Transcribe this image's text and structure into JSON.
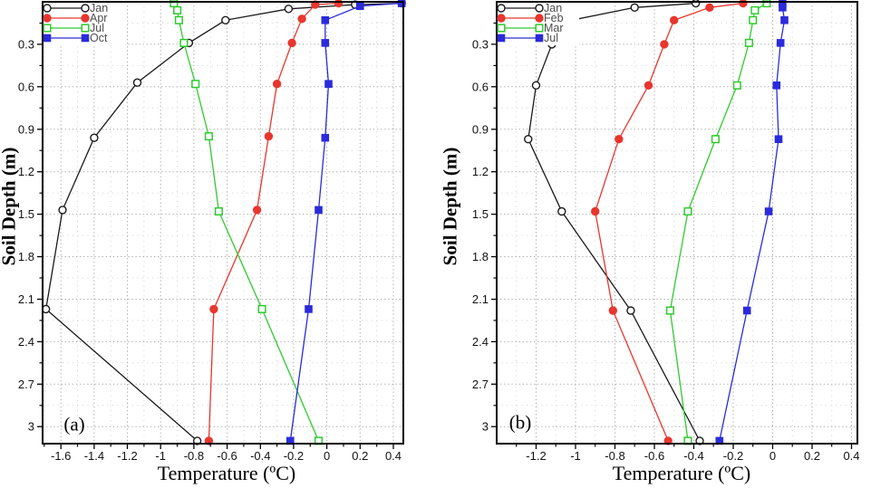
{
  "figure": {
    "background": "#ffffff",
    "description": "Two-panel soil temperature profile chart"
  },
  "styles": {
    "axis_color": "#000000",
    "grid_major_color": "#a8a8a8",
    "grid_minor_color": "#d2d2d2",
    "tick_label_color": "#111111",
    "legend_text_color": "#4d4d4d",
    "legend_bg": "#ffffff"
  },
  "chart_data": [
    {
      "type": "line",
      "panel_label": "(a)",
      "xlabel": "Temperature (ºC)",
      "ylabel": "Soil Depth (m)",
      "xlim": [
        -1.71,
        0.46
      ],
      "depth_lim": [
        0,
        3.12
      ],
      "xticks": [
        "-1.6",
        "-1.4",
        "-1.2",
        "-1",
        "-0.8",
        "-0.6",
        "-0.4",
        "-0.2",
        "0",
        "0.2",
        "0.4"
      ],
      "yticks": [
        "0.3",
        "0.6",
        "0.9",
        "1.2",
        "1.5",
        "1.8",
        "2.1",
        "2.4",
        "2.7",
        "3"
      ],
      "x_minor_step": 0.1,
      "y_minor_step": 0.15,
      "grid": "dotted",
      "legend_position": "top-left",
      "series": [
        {
          "name": "Jan",
          "color": "#1a1a1a",
          "marker": "open-circle",
          "points": [
            [
              0.45,
              0.01
            ],
            [
              0.17,
              0.02
            ],
            [
              -0.23,
              0.05
            ],
            [
              -0.61,
              0.13
            ],
            [
              -0.83,
              0.29
            ],
            [
              -1.14,
              0.57
            ],
            [
              -1.4,
              0.96
            ],
            [
              -1.59,
              1.47
            ],
            [
              -1.69,
              2.17
            ],
            [
              -0.78,
              3.1
            ]
          ]
        },
        {
          "name": "Apr",
          "color": "#e8362e",
          "marker": "filled-circle",
          "points": [
            [
              0.07,
              0.01
            ],
            [
              -0.07,
              0.02
            ],
            [
              -0.15,
              0.12
            ],
            [
              -0.21,
              0.29
            ],
            [
              -0.3,
              0.58
            ],
            [
              -0.35,
              0.95
            ],
            [
              -0.42,
              1.47
            ],
            [
              -0.68,
              2.17
            ],
            [
              -0.71,
              3.1
            ]
          ]
        },
        {
          "name": "Jul",
          "color": "#2fca2f",
          "marker": "open-square",
          "points": [
            [
              -0.92,
              0.01
            ],
            [
              -0.9,
              0.06
            ],
            [
              -0.89,
              0.13
            ],
            [
              -0.86,
              0.29
            ],
            [
              -0.79,
              0.58
            ],
            [
              -0.71,
              0.95
            ],
            [
              -0.65,
              1.48
            ],
            [
              -0.39,
              2.17
            ],
            [
              -0.05,
              3.1
            ]
          ]
        },
        {
          "name": "Oct",
          "color": "#2b2bdb",
          "marker": "filled-square",
          "points": [
            [
              0.45,
              0.01
            ],
            [
              0.2,
              0.03
            ],
            [
              -0.01,
              0.13
            ],
            [
              -0.01,
              0.29
            ],
            [
              0.01,
              0.58
            ],
            [
              -0.01,
              0.96
            ],
            [
              -0.05,
              1.47
            ],
            [
              -0.11,
              2.17
            ],
            [
              -0.22,
              3.1
            ]
          ]
        }
      ]
    },
    {
      "type": "line",
      "panel_label": "(b)",
      "xlabel": "Temperature (ºC)",
      "ylabel": "Soil Depth (m)",
      "xlim": [
        -1.4,
        0.43
      ],
      "depth_lim": [
        0,
        3.12
      ],
      "xticks": [
        "-1.2",
        "-1",
        "-0.8",
        "-0.6",
        "-0.4",
        "-0.2",
        "0",
        "0.2",
        "0.4"
      ],
      "yticks": [
        "0.3",
        "0.6",
        "0.9",
        "1.2",
        "1.5",
        "1.8",
        "2.1",
        "2.4",
        "2.7",
        "3"
      ],
      "x_minor_step": 0.1,
      "y_minor_step": 0.15,
      "grid": "dotted",
      "legend_position": "top-left",
      "series": [
        {
          "name": "Jan",
          "color": "#1a1a1a",
          "marker": "open-circle",
          "points": [
            [
              -0.39,
              0.01
            ],
            [
              -0.7,
              0.04
            ],
            [
              -1.02,
              0.13
            ],
            [
              -1.12,
              0.3
            ],
            [
              -1.2,
              0.59
            ],
            [
              -1.24,
              0.97
            ],
            [
              -1.07,
              1.48
            ],
            [
              -0.72,
              2.18
            ],
            [
              -0.37,
              3.1
            ]
          ]
        },
        {
          "name": "Feb",
          "color": "#e8362e",
          "marker": "filled-circle",
          "points": [
            [
              -0.15,
              0.01
            ],
            [
              -0.32,
              0.04
            ],
            [
              -0.5,
              0.13
            ],
            [
              -0.55,
              0.3
            ],
            [
              -0.63,
              0.59
            ],
            [
              -0.78,
              0.97
            ],
            [
              -0.9,
              1.48
            ],
            [
              -0.81,
              2.18
            ],
            [
              -0.53,
              3.1
            ]
          ]
        },
        {
          "name": "Mar",
          "color": "#2fca2f",
          "marker": "open-square",
          "points": [
            [
              -0.03,
              0.01
            ],
            [
              -0.09,
              0.06
            ],
            [
              -0.1,
              0.13
            ],
            [
              -0.12,
              0.29
            ],
            [
              -0.18,
              0.59
            ],
            [
              -0.29,
              0.97
            ],
            [
              -0.43,
              1.48
            ],
            [
              -0.52,
              2.18
            ],
            [
              -0.43,
              3.1
            ]
          ]
        },
        {
          "name": "Jul",
          "color": "#2b2bdb",
          "marker": "filled-square",
          "points": [
            [
              0.05,
              0.01
            ],
            [
              0.05,
              0.04
            ],
            [
              0.06,
              0.13
            ],
            [
              0.04,
              0.29
            ],
            [
              0.02,
              0.59
            ],
            [
              0.03,
              0.97
            ],
            [
              -0.02,
              1.48
            ],
            [
              -0.13,
              2.18
            ],
            [
              -0.27,
              3.1
            ]
          ]
        }
      ]
    }
  ]
}
